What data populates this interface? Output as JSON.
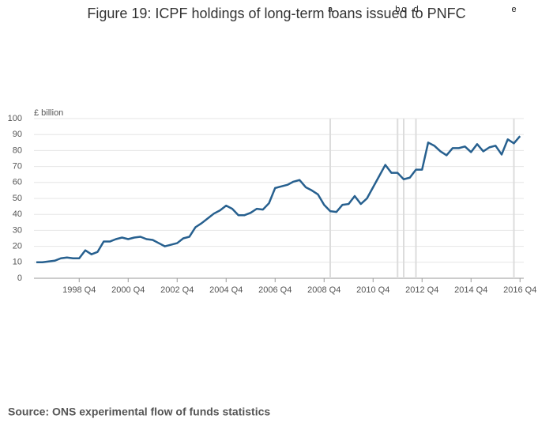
{
  "chart_data": {
    "type": "line",
    "title": "Figure 19: ICPF holdings of long-term loans issued to PNFC",
    "y_label": "£ billion",
    "source": "Source: ONS experimental flow of funds statistics",
    "categories": [
      null,
      null,
      null,
      null,
      null,
      null,
      null,
      "1998 Q4",
      null,
      null,
      null,
      null,
      null,
      null,
      null,
      "2000 Q4",
      null,
      null,
      null,
      null,
      null,
      null,
      null,
      "2002 Q4",
      null,
      null,
      null,
      null,
      null,
      null,
      null,
      "2004 Q4",
      null,
      null,
      null,
      null,
      null,
      null,
      null,
      "2006 Q4",
      null,
      null,
      null,
      null,
      null,
      null,
      null,
      "2008 Q4",
      null,
      null,
      null,
      null,
      null,
      null,
      null,
      "2010 Q4",
      null,
      null,
      null,
      null,
      null,
      null,
      null,
      "2012 Q4",
      null,
      null,
      null,
      null,
      null,
      null,
      null,
      "2014 Q4",
      null,
      null,
      null,
      null,
      null,
      null,
      null,
      "2016 Q4"
    ],
    "series": [
      {
        "name": "ICPF holdings",
        "color": "#27608f",
        "values": [
          10,
          10,
          10.5,
          11,
          12.5,
          13,
          12.5,
          12.5,
          17.5,
          15,
          16.5,
          23,
          23,
          24.5,
          25.5,
          24.5,
          25.5,
          26,
          24.5,
          24,
          22,
          20,
          21,
          22,
          25,
          26,
          32,
          34.5,
          37.5,
          40.5,
          42.5,
          45.5,
          43.5,
          39.5,
          39.5,
          41,
          43.5,
          43,
          47,
          56.5,
          57.5,
          58.5,
          60.5,
          61.5,
          57,
          55,
          52.5,
          46,
          42,
          41.5,
          46,
          46.5,
          51.5,
          46.5,
          50,
          57,
          64,
          71,
          66,
          66,
          62,
          63,
          68,
          68,
          85,
          83,
          79.5,
          77,
          81.5,
          81.5,
          82.5,
          79,
          84,
          79.5,
          82,
          83,
          77.5,
          87,
          84.5,
          89
        ]
      }
    ],
    "annotations": [
      {
        "label": "a",
        "at": 48
      },
      {
        "label": "b",
        "at": 59
      },
      {
        "label": "c",
        "at": 60
      },
      {
        "label": "d",
        "at": 62
      },
      {
        "label": "e",
        "at": 78
      }
    ],
    "ylim": [
      0,
      100
    ],
    "yticks": [
      0,
      10,
      20,
      30,
      40,
      50,
      60,
      70,
      80,
      90,
      100
    ],
    "grid": true
  }
}
